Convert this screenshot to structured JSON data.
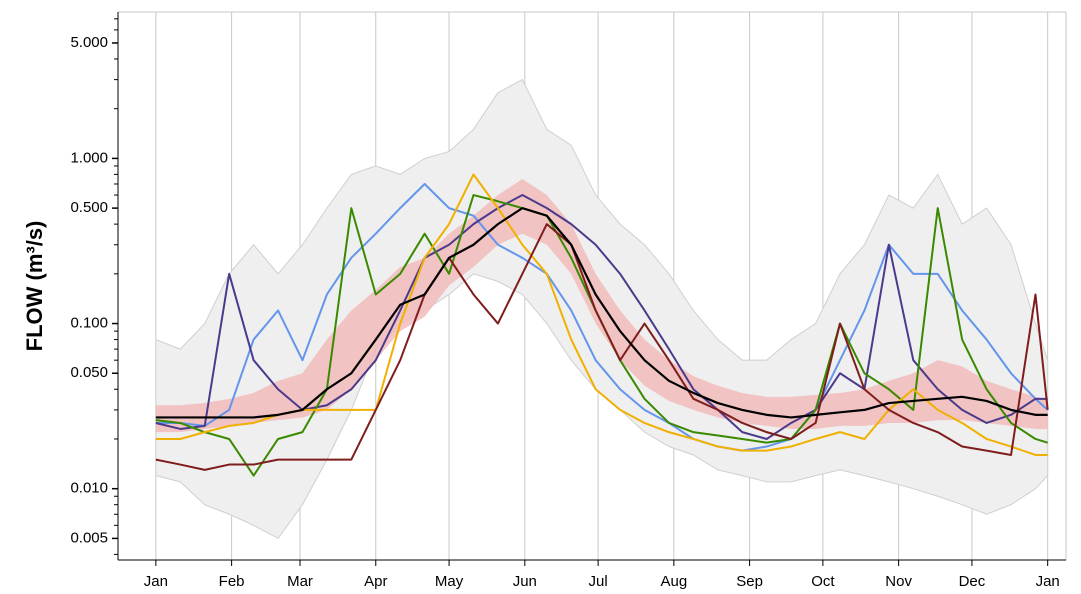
{
  "chart_data": {
    "type": "line",
    "y_label": "FLOW (m³/s)",
    "log_y": true,
    "grid_x": true,
    "xlim": [
      -15.5,
      372.5
    ],
    "ylim": [
      0.0037,
      7.7
    ],
    "xticks": [
      {
        "value": 0,
        "label": "Jan"
      },
      {
        "value": 31,
        "label": "Feb"
      },
      {
        "value": 59,
        "label": "Mar"
      },
      {
        "value": 90,
        "label": "Apr"
      },
      {
        "value": 120,
        "label": "May"
      },
      {
        "value": 151,
        "label": "Jun"
      },
      {
        "value": 181,
        "label": "Jul"
      },
      {
        "value": 212,
        "label": "Aug"
      },
      {
        "value": 243,
        "label": "Sep"
      },
      {
        "value": 273,
        "label": "Oct"
      },
      {
        "value": 304,
        "label": "Nov"
      },
      {
        "value": 334,
        "label": "Dec"
      },
      {
        "value": 365,
        "label": "Jan"
      }
    ],
    "yticks": [
      {
        "value": 5,
        "label": "5.000"
      },
      {
        "value": 1,
        "label": "1.000"
      },
      {
        "value": 0.5,
        "label": "0.500"
      },
      {
        "value": 0.1,
        "label": "0.100"
      },
      {
        "value": 0.05,
        "label": "0.050"
      },
      {
        "value": 0.01,
        "label": "0.010"
      },
      {
        "value": 0.005,
        "label": "0.005"
      }
    ],
    "yminor": [
      0.004,
      0.006,
      0.007,
      0.008,
      0.009,
      0.02,
      0.03,
      0.04,
      0.06,
      0.07,
      0.08,
      0.09,
      0.2,
      0.3,
      0.4,
      0.6,
      0.7,
      0.8,
      0.9,
      2,
      3,
      4,
      6,
      7
    ],
    "x": [
      0,
      10,
      20,
      30,
      40,
      50,
      60,
      70,
      80,
      90,
      100,
      110,
      120,
      130,
      140,
      150,
      160,
      170,
      180,
      190,
      200,
      210,
      220,
      230,
      240,
      250,
      260,
      270,
      280,
      290,
      300,
      310,
      320,
      330,
      340,
      350,
      360,
      365
    ],
    "envelope": {
      "color": "#efefef",
      "high": [
        0.08,
        0.07,
        0.1,
        0.2,
        0.3,
        0.2,
        0.3,
        0.5,
        0.8,
        0.9,
        0.8,
        1.0,
        1.1,
        1.5,
        2.5,
        3,
        1.5,
        1.2,
        0.6,
        0.4,
        0.3,
        0.2,
        0.12,
        0.08,
        0.06,
        0.06,
        0.08,
        0.1,
        0.2,
        0.3,
        0.6,
        0.5,
        0.8,
        0.4,
        0.5,
        0.3,
        0.1,
        0.06
      ],
      "low": [
        0.012,
        0.011,
        0.008,
        0.007,
        0.006,
        0.005,
        0.008,
        0.015,
        0.03,
        0.07,
        0.1,
        0.12,
        0.15,
        0.2,
        0.18,
        0.15,
        0.1,
        0.06,
        0.04,
        0.03,
        0.022,
        0.018,
        0.016,
        0.013,
        0.012,
        0.011,
        0.011,
        0.012,
        0.013,
        0.012,
        0.011,
        0.01,
        0.009,
        0.008,
        0.007,
        0.008,
        0.01,
        0.012
      ]
    },
    "band": {
      "color": "#f2b8b8",
      "high": [
        0.032,
        0.032,
        0.033,
        0.035,
        0.038,
        0.045,
        0.05,
        0.08,
        0.12,
        0.16,
        0.22,
        0.25,
        0.35,
        0.45,
        0.6,
        0.75,
        0.6,
        0.4,
        0.2,
        0.12,
        0.08,
        0.06,
        0.048,
        0.042,
        0.038,
        0.036,
        0.036,
        0.037,
        0.038,
        0.04,
        0.045,
        0.05,
        0.06,
        0.055,
        0.045,
        0.04,
        0.036,
        0.035
      ],
      "low": [
        0.022,
        0.022,
        0.023,
        0.024,
        0.025,
        0.026,
        0.027,
        0.03,
        0.04,
        0.06,
        0.09,
        0.11,
        0.17,
        0.22,
        0.3,
        0.35,
        0.3,
        0.2,
        0.1,
        0.06,
        0.042,
        0.034,
        0.03,
        0.027,
        0.025,
        0.024,
        0.023,
        0.023,
        0.024,
        0.024,
        0.025,
        0.025,
        0.026,
        0.026,
        0.025,
        0.024,
        0.023,
        0.023
      ]
    },
    "median": {
      "color": "#000000",
      "values": [
        0.027,
        0.027,
        0.027,
        0.027,
        0.027,
        0.028,
        0.03,
        0.04,
        0.05,
        0.08,
        0.13,
        0.15,
        0.25,
        0.3,
        0.4,
        0.5,
        0.45,
        0.3,
        0.15,
        0.09,
        0.06,
        0.045,
        0.038,
        0.033,
        0.03,
        0.028,
        0.027,
        0.028,
        0.029,
        0.03,
        0.033,
        0.034,
        0.035,
        0.036,
        0.034,
        0.03,
        0.028,
        0.028
      ]
    },
    "series": [
      {
        "color": "#6495ed",
        "values": [
          0.025,
          0.025,
          0.024,
          0.03,
          0.08,
          0.12,
          0.06,
          0.15,
          0.25,
          0.35,
          0.5,
          0.7,
          0.5,
          0.45,
          0.3,
          0.25,
          0.2,
          0.12,
          0.06,
          0.04,
          0.03,
          0.025,
          0.02,
          0.018,
          0.017,
          0.018,
          0.02,
          0.03,
          0.06,
          0.12,
          0.3,
          0.2,
          0.2,
          0.12,
          0.08,
          0.05,
          0.035,
          0.03
        ]
      },
      {
        "color": "#4b3a8c",
        "values": [
          0.025,
          0.023,
          0.024,
          0.2,
          0.06,
          0.04,
          0.03,
          0.032,
          0.04,
          0.06,
          0.12,
          0.25,
          0.3,
          0.4,
          0.5,
          0.6,
          0.5,
          0.4,
          0.3,
          0.2,
          0.12,
          0.07,
          0.04,
          0.03,
          0.022,
          0.02,
          0.025,
          0.03,
          0.05,
          0.04,
          0.3,
          0.06,
          0.04,
          0.03,
          0.025,
          0.028,
          0.035,
          0.035
        ]
      },
      {
        "color": "#3a8a00",
        "values": [
          0.026,
          0.025,
          0.022,
          0.02,
          0.012,
          0.02,
          0.022,
          0.04,
          0.5,
          0.15,
          0.2,
          0.35,
          0.2,
          0.6,
          0.55,
          0.5,
          0.45,
          0.25,
          0.12,
          0.06,
          0.035,
          0.025,
          0.022,
          0.021,
          0.02,
          0.019,
          0.02,
          0.03,
          0.1,
          0.05,
          0.04,
          0.03,
          0.5,
          0.08,
          0.04,
          0.025,
          0.02,
          0.019
        ]
      },
      {
        "color": "#f0b000",
        "values": [
          0.02,
          0.02,
          0.022,
          0.024,
          0.025,
          0.028,
          0.03,
          0.03,
          0.03,
          0.03,
          0.1,
          0.25,
          0.4,
          0.8,
          0.5,
          0.3,
          0.2,
          0.08,
          0.04,
          0.03,
          0.025,
          0.022,
          0.02,
          0.018,
          0.017,
          0.017,
          0.018,
          0.02,
          0.022,
          0.02,
          0.03,
          0.04,
          0.03,
          0.025,
          0.02,
          0.018,
          0.016,
          0.016
        ]
      },
      {
        "color": "#7f1d1d",
        "values": [
          0.015,
          0.014,
          0.013,
          0.014,
          0.014,
          0.015,
          0.015,
          0.015,
          0.015,
          0.03,
          0.06,
          0.15,
          0.25,
          0.15,
          0.1,
          0.2,
          0.4,
          0.3,
          0.12,
          0.06,
          0.1,
          0.06,
          0.035,
          0.03,
          0.025,
          0.022,
          0.02,
          0.025,
          0.1,
          0.04,
          0.03,
          0.025,
          0.022,
          0.018,
          0.017,
          0.016,
          0.15,
          0.03
        ]
      }
    ]
  }
}
